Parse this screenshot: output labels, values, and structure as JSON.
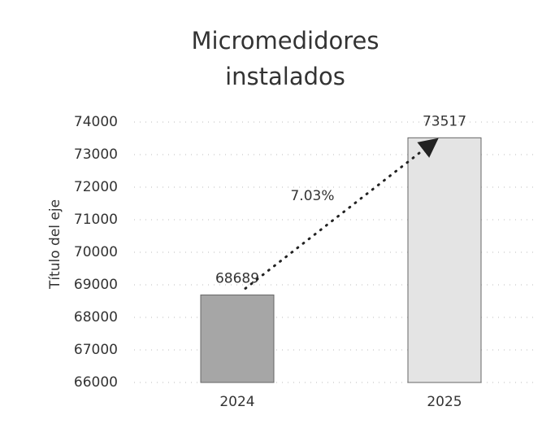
{
  "chart_data": {
    "type": "bar",
    "title": "Micromedidores instalados",
    "y_axis_label": "Título del eje",
    "categories": [
      "2024",
      "2025"
    ],
    "values": [
      68689,
      73517
    ],
    "colors": [
      "#a6a6a6",
      "#e4e4e4"
    ],
    "annotation": "7.03%",
    "ylim": [
      66000,
      74000
    ],
    "yticks": [
      66000,
      67000,
      68000,
      69000,
      70000,
      71000,
      72000,
      73000,
      74000
    ],
    "grid": true
  }
}
